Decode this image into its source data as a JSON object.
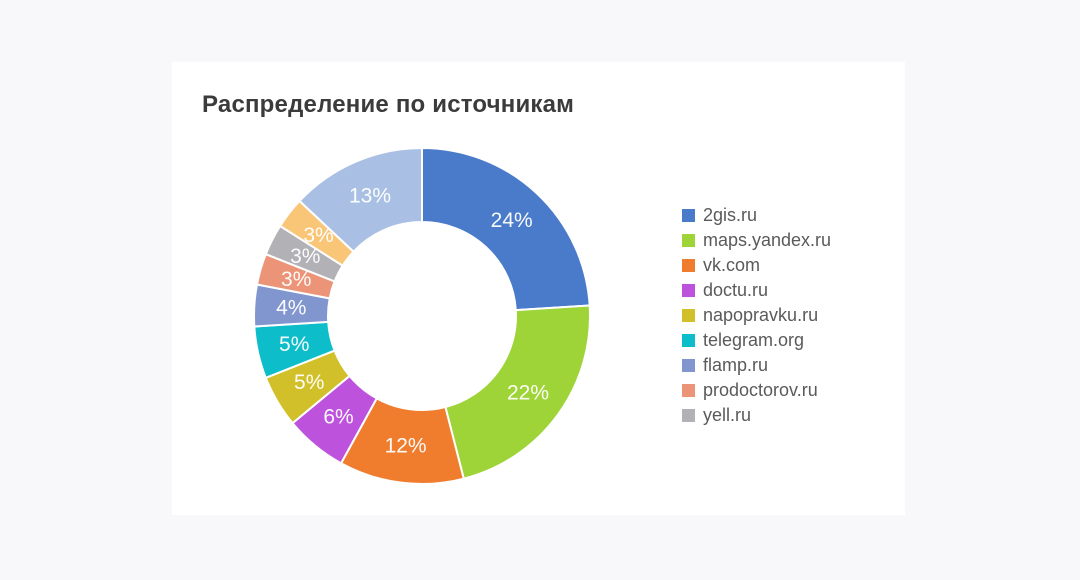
{
  "page": {
    "background_color": "#f8f8fa",
    "card_color": "#ffffff"
  },
  "chart_data": {
    "type": "pie",
    "subtype": "donut",
    "title": "Распределение по источникам",
    "unit": "%",
    "direction": "clockwise",
    "start_angle_deg": 0,
    "inner_radius_ratio": 0.56,
    "legend_position": "right",
    "label_color": "#ffffff",
    "segments": [
      {
        "label": "2gis.ru",
        "value": 24,
        "color": "#4a7bca",
        "in_legend": true
      },
      {
        "label": "maps.yandex.ru",
        "value": 22,
        "color": "#9ed437",
        "in_legend": true
      },
      {
        "label": "vk.com",
        "value": 12,
        "color": "#f07c2e",
        "in_legend": true
      },
      {
        "label": "doctu.ru",
        "value": 6,
        "color": "#bd53dd",
        "in_legend": true
      },
      {
        "label": "napopravku.ru",
        "value": 5,
        "color": "#d2c02b",
        "in_legend": true
      },
      {
        "label": "telegram.org",
        "value": 5,
        "color": "#0dbdc9",
        "in_legend": true
      },
      {
        "label": "flamp.ru",
        "value": 4,
        "color": "#8195cf",
        "in_legend": true
      },
      {
        "label": "prodoctorov.ru",
        "value": 3,
        "color": "#ec9478",
        "in_legend": true
      },
      {
        "label": "yell.ru",
        "value": 3,
        "color": "#b2b2b6",
        "in_legend": true
      },
      {
        "label": null,
        "value": 3,
        "color": "#f9c577",
        "in_legend": false
      },
      {
        "label": null,
        "value": 13,
        "color": "#a9c0e4",
        "in_legend": false
      }
    ]
  }
}
